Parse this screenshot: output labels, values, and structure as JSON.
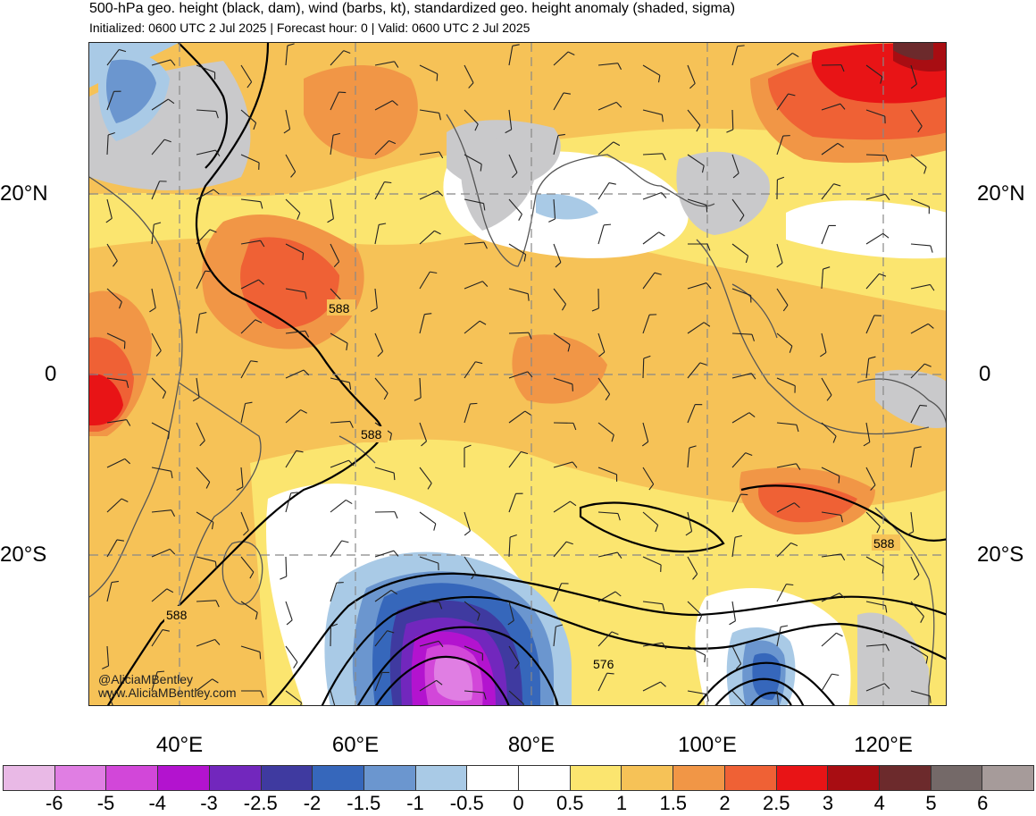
{
  "header": {
    "title": "500-hPa geo. height (black, dam), wind (barbs, kt), standardized geo. height anomaly (shaded, sigma)",
    "subtitle": "Initialized: 0600 UTC 2 Jul 2025 | Forecast hour: 0 | Valid: 0600 UTC 2 Jul 2025"
  },
  "map": {
    "lat_labels": {
      "n20": "20°N",
      "eq": "0",
      "s20": "20°S"
    },
    "lon_labels": [
      "40°E",
      "60°E",
      "80°E",
      "100°E",
      "120°E"
    ],
    "contour_labels": [
      "588",
      "588",
      "588",
      "588",
      "576"
    ],
    "credits": [
      "@AliciaMBentley",
      "www.AliciaMBentley.com"
    ]
  },
  "colorbar": {
    "labels": [
      "-6",
      "-5",
      "-4",
      "-3",
      "-2.5",
      "-2",
      "-1.5",
      "-1",
      "-0.5",
      "0",
      "0.5",
      "1",
      "1.5",
      "2",
      "2.5",
      "3",
      "4",
      "5",
      "6"
    ],
    "colors": [
      "#e9b9e6",
      "#e07ee3",
      "#d247d9",
      "#b313cf",
      "#7227bd",
      "#3f3aa0",
      "#3667bb",
      "#6b96cf",
      "#a9cae6",
      "#ffffff",
      "#ffffff",
      "#fbe56f",
      "#f6c257",
      "#f19646",
      "#ef6135",
      "#e81416",
      "#a80d12",
      "#6c2a2c",
      "#746968",
      "#a69b9a"
    ]
  }
}
